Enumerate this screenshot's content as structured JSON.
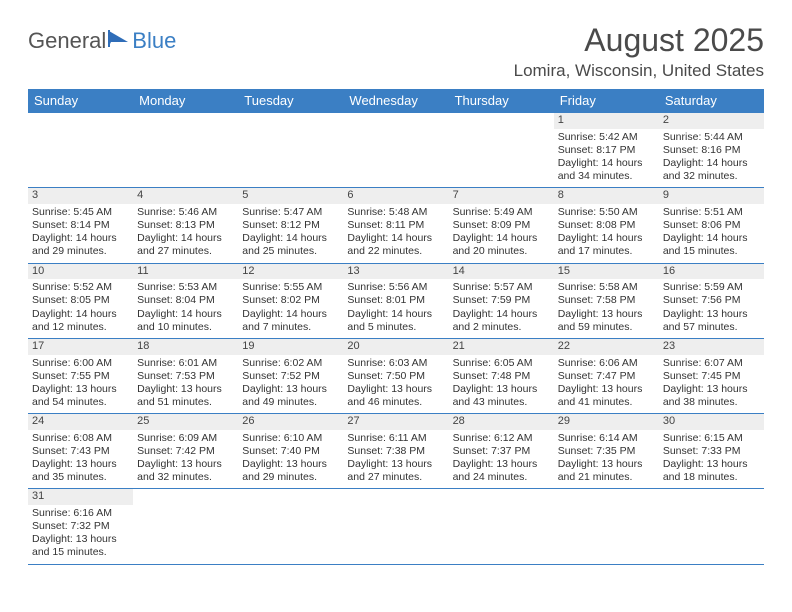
{
  "brand": {
    "general": "General",
    "blue": "Blue"
  },
  "title": "August 2025",
  "location": "Lomira, Wisconsin, United States",
  "colors": {
    "header_bg": "#3b7fc4",
    "header_text": "#ffffff",
    "daynum_bg": "#eeeeee",
    "row_border": "#3b7fc4",
    "text": "#333333",
    "page_bg": "#ffffff"
  },
  "weekdays": [
    "Sunday",
    "Monday",
    "Tuesday",
    "Wednesday",
    "Thursday",
    "Friday",
    "Saturday"
  ],
  "weeks": [
    [
      {
        "empty": true
      },
      {
        "empty": true
      },
      {
        "empty": true
      },
      {
        "empty": true
      },
      {
        "empty": true
      },
      {
        "day": "1",
        "sunrise": "Sunrise: 5:42 AM",
        "sunset": "Sunset: 8:17 PM",
        "daylight": "Daylight: 14 hours and 34 minutes."
      },
      {
        "day": "2",
        "sunrise": "Sunrise: 5:44 AM",
        "sunset": "Sunset: 8:16 PM",
        "daylight": "Daylight: 14 hours and 32 minutes."
      }
    ],
    [
      {
        "day": "3",
        "sunrise": "Sunrise: 5:45 AM",
        "sunset": "Sunset: 8:14 PM",
        "daylight": "Daylight: 14 hours and 29 minutes."
      },
      {
        "day": "4",
        "sunrise": "Sunrise: 5:46 AM",
        "sunset": "Sunset: 8:13 PM",
        "daylight": "Daylight: 14 hours and 27 minutes."
      },
      {
        "day": "5",
        "sunrise": "Sunrise: 5:47 AM",
        "sunset": "Sunset: 8:12 PM",
        "daylight": "Daylight: 14 hours and 25 minutes."
      },
      {
        "day": "6",
        "sunrise": "Sunrise: 5:48 AM",
        "sunset": "Sunset: 8:11 PM",
        "daylight": "Daylight: 14 hours and 22 minutes."
      },
      {
        "day": "7",
        "sunrise": "Sunrise: 5:49 AM",
        "sunset": "Sunset: 8:09 PM",
        "daylight": "Daylight: 14 hours and 20 minutes."
      },
      {
        "day": "8",
        "sunrise": "Sunrise: 5:50 AM",
        "sunset": "Sunset: 8:08 PM",
        "daylight": "Daylight: 14 hours and 17 minutes."
      },
      {
        "day": "9",
        "sunrise": "Sunrise: 5:51 AM",
        "sunset": "Sunset: 8:06 PM",
        "daylight": "Daylight: 14 hours and 15 minutes."
      }
    ],
    [
      {
        "day": "10",
        "sunrise": "Sunrise: 5:52 AM",
        "sunset": "Sunset: 8:05 PM",
        "daylight": "Daylight: 14 hours and 12 minutes."
      },
      {
        "day": "11",
        "sunrise": "Sunrise: 5:53 AM",
        "sunset": "Sunset: 8:04 PM",
        "daylight": "Daylight: 14 hours and 10 minutes."
      },
      {
        "day": "12",
        "sunrise": "Sunrise: 5:55 AM",
        "sunset": "Sunset: 8:02 PM",
        "daylight": "Daylight: 14 hours and 7 minutes."
      },
      {
        "day": "13",
        "sunrise": "Sunrise: 5:56 AM",
        "sunset": "Sunset: 8:01 PM",
        "daylight": "Daylight: 14 hours and 5 minutes."
      },
      {
        "day": "14",
        "sunrise": "Sunrise: 5:57 AM",
        "sunset": "Sunset: 7:59 PM",
        "daylight": "Daylight: 14 hours and 2 minutes."
      },
      {
        "day": "15",
        "sunrise": "Sunrise: 5:58 AM",
        "sunset": "Sunset: 7:58 PM",
        "daylight": "Daylight: 13 hours and 59 minutes."
      },
      {
        "day": "16",
        "sunrise": "Sunrise: 5:59 AM",
        "sunset": "Sunset: 7:56 PM",
        "daylight": "Daylight: 13 hours and 57 minutes."
      }
    ],
    [
      {
        "day": "17",
        "sunrise": "Sunrise: 6:00 AM",
        "sunset": "Sunset: 7:55 PM",
        "daylight": "Daylight: 13 hours and 54 minutes."
      },
      {
        "day": "18",
        "sunrise": "Sunrise: 6:01 AM",
        "sunset": "Sunset: 7:53 PM",
        "daylight": "Daylight: 13 hours and 51 minutes."
      },
      {
        "day": "19",
        "sunrise": "Sunrise: 6:02 AM",
        "sunset": "Sunset: 7:52 PM",
        "daylight": "Daylight: 13 hours and 49 minutes."
      },
      {
        "day": "20",
        "sunrise": "Sunrise: 6:03 AM",
        "sunset": "Sunset: 7:50 PM",
        "daylight": "Daylight: 13 hours and 46 minutes."
      },
      {
        "day": "21",
        "sunrise": "Sunrise: 6:05 AM",
        "sunset": "Sunset: 7:48 PM",
        "daylight": "Daylight: 13 hours and 43 minutes."
      },
      {
        "day": "22",
        "sunrise": "Sunrise: 6:06 AM",
        "sunset": "Sunset: 7:47 PM",
        "daylight": "Daylight: 13 hours and 41 minutes."
      },
      {
        "day": "23",
        "sunrise": "Sunrise: 6:07 AM",
        "sunset": "Sunset: 7:45 PM",
        "daylight": "Daylight: 13 hours and 38 minutes."
      }
    ],
    [
      {
        "day": "24",
        "sunrise": "Sunrise: 6:08 AM",
        "sunset": "Sunset: 7:43 PM",
        "daylight": "Daylight: 13 hours and 35 minutes."
      },
      {
        "day": "25",
        "sunrise": "Sunrise: 6:09 AM",
        "sunset": "Sunset: 7:42 PM",
        "daylight": "Daylight: 13 hours and 32 minutes."
      },
      {
        "day": "26",
        "sunrise": "Sunrise: 6:10 AM",
        "sunset": "Sunset: 7:40 PM",
        "daylight": "Daylight: 13 hours and 29 minutes."
      },
      {
        "day": "27",
        "sunrise": "Sunrise: 6:11 AM",
        "sunset": "Sunset: 7:38 PM",
        "daylight": "Daylight: 13 hours and 27 minutes."
      },
      {
        "day": "28",
        "sunrise": "Sunrise: 6:12 AM",
        "sunset": "Sunset: 7:37 PM",
        "daylight": "Daylight: 13 hours and 24 minutes."
      },
      {
        "day": "29",
        "sunrise": "Sunrise: 6:14 AM",
        "sunset": "Sunset: 7:35 PM",
        "daylight": "Daylight: 13 hours and 21 minutes."
      },
      {
        "day": "30",
        "sunrise": "Sunrise: 6:15 AM",
        "sunset": "Sunset: 7:33 PM",
        "daylight": "Daylight: 13 hours and 18 minutes."
      }
    ],
    [
      {
        "day": "31",
        "sunrise": "Sunrise: 6:16 AM",
        "sunset": "Sunset: 7:32 PM",
        "daylight": "Daylight: 13 hours and 15 minutes."
      },
      {
        "empty": true
      },
      {
        "empty": true
      },
      {
        "empty": true
      },
      {
        "empty": true
      },
      {
        "empty": true
      },
      {
        "empty": true
      }
    ]
  ]
}
